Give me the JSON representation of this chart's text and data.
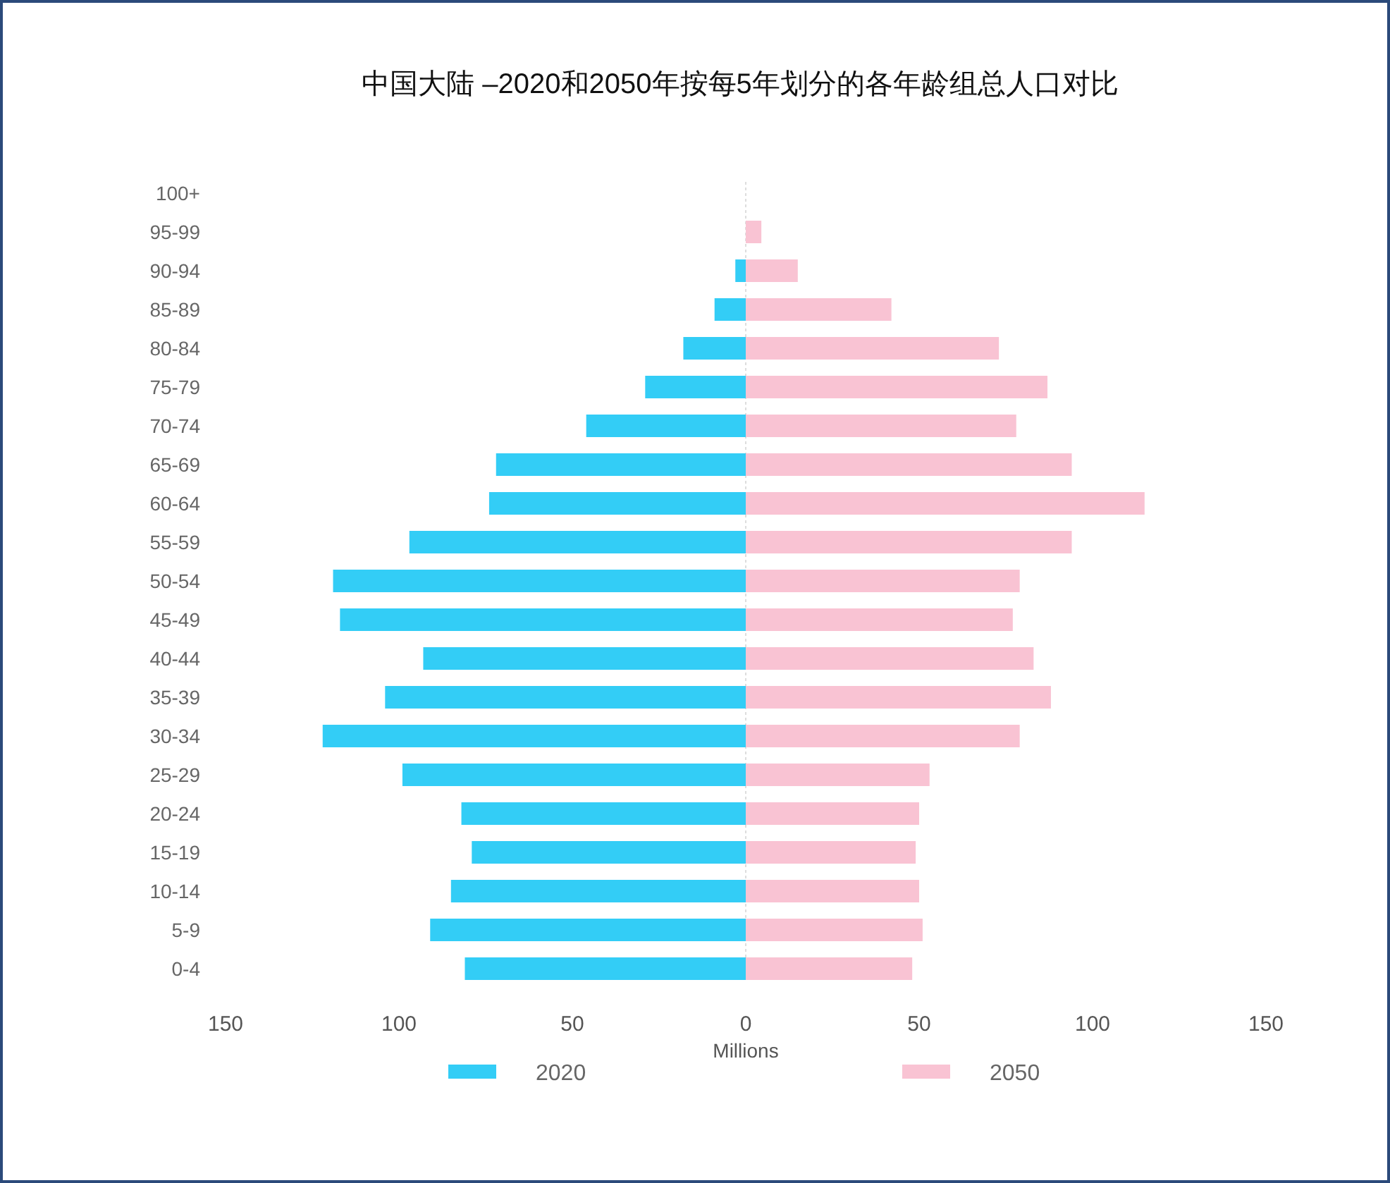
{
  "chart_data": {
    "type": "bar",
    "orientation": "horizontal",
    "title": "中国大陆 –2020和2050年按每5年划分的各年龄组总人口对比",
    "xlabel": "Millions",
    "categories": [
      "100+",
      "95-99",
      "90-94",
      "85-89",
      "80-84",
      "75-79",
      "70-74",
      "65-69",
      "60-64",
      "55-59",
      "50-54",
      "45-49",
      "40-44",
      "35-39",
      "30-34",
      "25-29",
      "20-24",
      "15-19",
      "10-14",
      "5-9",
      "0-4"
    ],
    "series": [
      {
        "name": "2020",
        "color": "#33cdf6",
        "values": [
          0,
          0,
          -3,
          -9,
          -18,
          -29,
          -46,
          -72,
          -74,
          -97,
          -119,
          -117,
          -93,
          -104,
          -122,
          -99,
          -82,
          -79,
          -85,
          -91,
          -81
        ]
      },
      {
        "name": "2050",
        "color": "#f9c3d3",
        "values": [
          null,
          4.5,
          15,
          42,
          73,
          87,
          78,
          94,
          115,
          94,
          79,
          77,
          83,
          88,
          79,
          53,
          50,
          49,
          50,
          51,
          48
        ]
      }
    ],
    "xlim": [
      -150,
      150
    ],
    "xticks": [
      {
        "value": -150,
        "label": "150"
      },
      {
        "value": -100,
        "label": "100"
      },
      {
        "value": -50,
        "label": "50"
      },
      0,
      50,
      100,
      150
    ],
    "stacked": true,
    "ref_lines": [
      {
        "axis": "x",
        "value": 0,
        "color": "#dddddd",
        "line_style": "dotted"
      }
    ],
    "legend": "bottom",
    "grid": false
  }
}
